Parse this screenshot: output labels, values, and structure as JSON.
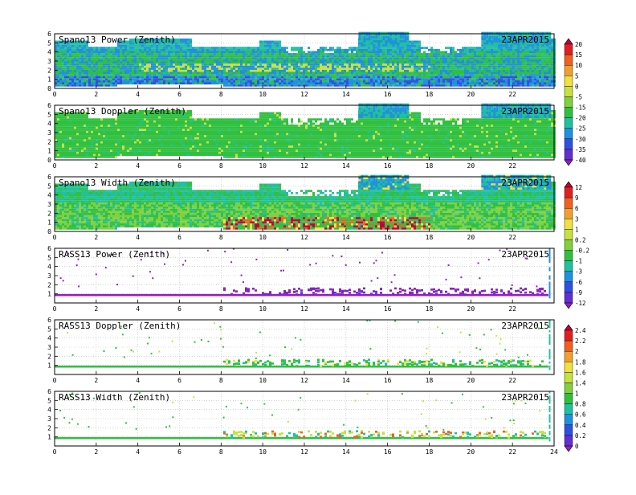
{
  "chart_data": [
    {
      "type": "heatmap",
      "title": "Spano13 Power (Zenith)",
      "date": "23APR2015",
      "x_ticks": [
        "0",
        "2",
        "4",
        "6",
        "8",
        "10",
        "12",
        "14",
        "16",
        "18",
        "20",
        "22"
      ],
      "y_ticks": [
        "0",
        "1",
        "2",
        "3",
        "4",
        "5",
        "6"
      ],
      "xlim": [
        0,
        24
      ],
      "ylim": [
        0,
        6
      ],
      "colorbar": "power",
      "pattern": "profiler"
    },
    {
      "type": "heatmap",
      "title": "Spano13 Doppler (Zenith)",
      "date": "23APR2015",
      "x_ticks": [
        "0",
        "2",
        "4",
        "6",
        "8",
        "10",
        "12",
        "14",
        "16",
        "18",
        "20",
        "22"
      ],
      "y_ticks": [
        "0",
        "1",
        "2",
        "3",
        "4",
        "5",
        "6"
      ],
      "xlim": [
        0,
        24
      ],
      "ylim": [
        0,
        6
      ],
      "colorbar": "power",
      "pattern": "doppler"
    },
    {
      "type": "heatmap",
      "title": "Spano13 Width (Zenith)",
      "date": "23APR2015",
      "x_ticks": [
        "0",
        "2",
        "4",
        "6",
        "8",
        "10",
        "12",
        "14",
        "16",
        "18",
        "20",
        "22"
      ],
      "y_ticks": [
        "0",
        "1",
        "2",
        "3",
        "4",
        "5",
        "6"
      ],
      "xlim": [
        0,
        24
      ],
      "ylim": [
        0,
        6
      ],
      "colorbar": "doppler",
      "pattern": "width"
    },
    {
      "type": "heatmap",
      "title": "RASS13 Power (Zenith)",
      "date": "23APR2015",
      "x_ticks": [
        "0",
        "2",
        "4",
        "6",
        "8",
        "10",
        "12",
        "14",
        "16",
        "18",
        "20",
        "22"
      ],
      "y_ticks": [
        "1",
        "2",
        "3",
        "4",
        "5",
        "6"
      ],
      "xlim": [
        0,
        24
      ],
      "ylim": [
        0,
        6
      ],
      "colorbar": "doppler",
      "pattern": "rass_power"
    },
    {
      "type": "heatmap",
      "title": "RASS13 Doppler (Zenith)",
      "date": "23APR2015",
      "x_ticks": [
        "0",
        "2",
        "4",
        "6",
        "8",
        "10",
        "12",
        "14",
        "16",
        "18",
        "20",
        "22"
      ],
      "y_ticks": [
        "1",
        "2",
        "3",
        "4",
        "5",
        "6"
      ],
      "xlim": [
        0,
        24
      ],
      "ylim": [
        0,
        6
      ],
      "colorbar": "width",
      "pattern": "rass_doppler"
    },
    {
      "type": "heatmap",
      "title": "RASS13 Width (Zenith)",
      "date": "23APR2015",
      "x_ticks": [
        "0",
        "2",
        "4",
        "6",
        "8",
        "10",
        "12",
        "14",
        "16",
        "18",
        "20",
        "22",
        "24"
      ],
      "y_ticks": [
        "1",
        "2",
        "3",
        "4",
        "5",
        "6"
      ],
      "xlim": [
        0,
        24
      ],
      "ylim": [
        0,
        6
      ],
      "colorbar": "width",
      "pattern": "rass_width"
    }
  ],
  "colorbars": [
    {
      "id": "power",
      "labels": [
        "20",
        "15",
        "10",
        "5",
        "0",
        "-5",
        "-15",
        "-20",
        "-25",
        "-30",
        "-35",
        "-40"
      ],
      "colors": [
        "#c0003c",
        "#e02020",
        "#f06020",
        "#f0a030",
        "#f0e040",
        "#c8e040",
        "#80d040",
        "#30c040",
        "#20c0a0",
        "#2090e0",
        "#3050e0",
        "#6030d0",
        "#9020c0"
      ]
    },
    {
      "id": "doppler",
      "labels": [
        "12",
        "9",
        "6",
        "3",
        "1",
        "0.2",
        "-0.2",
        "-1",
        "-3",
        "-6",
        "-9",
        "-12"
      ],
      "colors": [
        "#c0003c",
        "#e02020",
        "#f06020",
        "#f0a030",
        "#f0e040",
        "#c8e040",
        "#80d040",
        "#30c040",
        "#20c0a0",
        "#2090e0",
        "#3050e0",
        "#6030d0",
        "#9020c0"
      ]
    },
    {
      "id": "width",
      "labels": [
        "2.4",
        "2.2",
        "2",
        "1.8",
        "1.6",
        "1.4",
        "1",
        "0.8",
        "0.6",
        "0.4",
        "0.2",
        "0"
      ],
      "colors": [
        "#c0003c",
        "#e02020",
        "#f06020",
        "#f0a030",
        "#f0e040",
        "#c8e040",
        "#80d040",
        "#30c040",
        "#20c0a0",
        "#2090e0",
        "#3050e0",
        "#6030d0",
        "#9020c0"
      ]
    }
  ]
}
